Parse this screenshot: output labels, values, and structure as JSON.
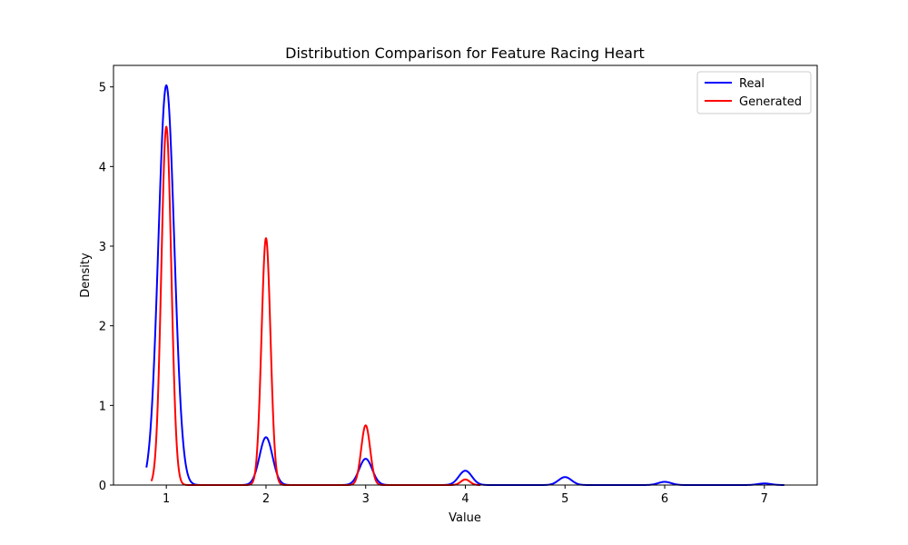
{
  "chart_data": {
    "type": "line",
    "title": "Distribution Comparison for Feature Racing Heart",
    "xlabel": "Value",
    "ylabel": "Density",
    "xlim": [
      0.47,
      7.53
    ],
    "ylim": [
      0,
      5.27
    ],
    "xticks": [
      "1",
      "2",
      "3",
      "4",
      "5",
      "6",
      "7"
    ],
    "yticks": [
      "0",
      "1",
      "2",
      "3",
      "4",
      "5"
    ],
    "grid": false,
    "legend_position": "top-right",
    "series": [
      {
        "name": "Real",
        "color": "#0000ff",
        "x_range": [
          0.8,
          7.2
        ],
        "peaks": [
          {
            "center": 1,
            "height": 5.02,
            "width": 0.08
          },
          {
            "center": 2,
            "height": 0.6,
            "width": 0.065
          },
          {
            "center": 3,
            "height": 0.33,
            "width": 0.065
          },
          {
            "center": 4,
            "height": 0.18,
            "width": 0.065
          },
          {
            "center": 5,
            "height": 0.1,
            "width": 0.065
          },
          {
            "center": 6,
            "height": 0.04,
            "width": 0.065
          },
          {
            "center": 7,
            "height": 0.02,
            "width": 0.065
          }
        ]
      },
      {
        "name": "Generated",
        "color": "#ff0000",
        "x_range": [
          0.85,
          4.15
        ],
        "peaks": [
          {
            "center": 1,
            "height": 4.5,
            "width": 0.05
          },
          {
            "center": 2,
            "height": 3.1,
            "width": 0.045
          },
          {
            "center": 3,
            "height": 0.75,
            "width": 0.045
          },
          {
            "center": 4,
            "height": 0.07,
            "width": 0.045
          }
        ]
      }
    ]
  }
}
